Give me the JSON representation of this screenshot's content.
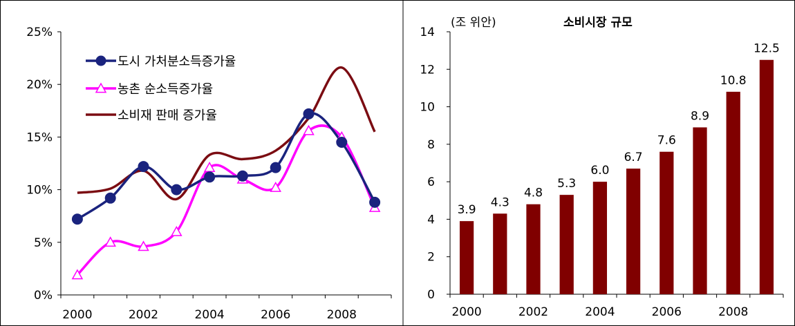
{
  "chart_data": [
    {
      "type": "line",
      "x": [
        2000,
        2001,
        2002,
        2003,
        2004,
        2005,
        2006,
        2007,
        2008,
        2009
      ],
      "xticks": [
        "2000",
        "2002",
        "2004",
        "2006",
        "2008"
      ],
      "yticks": [
        "0%",
        "5%",
        "10%",
        "15%",
        "20%",
        "25%"
      ],
      "ylim": [
        0,
        25
      ],
      "y_unit": "%",
      "legend_position": "top-left",
      "series": [
        {
          "name": "도시 가처분소득증가율",
          "color": "#1a237e",
          "marker": "circle",
          "values": [
            7.2,
            9.2,
            12.2,
            10.0,
            11.2,
            11.3,
            12.1,
            17.2,
            14.5,
            8.8
          ]
        },
        {
          "name": "농촌 순소득증가율",
          "color": "#ff00ff",
          "marker": "triangle",
          "values": [
            1.9,
            5.0,
            4.6,
            6.0,
            12.1,
            11.0,
            10.2,
            15.6,
            15.0,
            8.3
          ]
        },
        {
          "name": "소비재 판매 증가율",
          "color": "#7b0c12",
          "marker": "none",
          "values": [
            9.7,
            10.1,
            11.8,
            9.1,
            13.3,
            12.9,
            13.7,
            16.8,
            21.6,
            15.5
          ]
        }
      ]
    },
    {
      "type": "bar",
      "title": "소비시장 규모",
      "unit_label": "(조 위안)",
      "categories": [
        "2000",
        "2001",
        "2002",
        "2003",
        "2004",
        "2005",
        "2006",
        "2007",
        "2008",
        "2009"
      ],
      "xticks": [
        "2000",
        "2002",
        "2004",
        "2006",
        "2008"
      ],
      "values": [
        3.9,
        4.3,
        4.8,
        5.3,
        6.0,
        6.7,
        7.6,
        8.9,
        10.8,
        12.5
      ],
      "value_labels": [
        "3.9",
        "4.3",
        "4.8",
        "5.3",
        "6.0",
        "6.7",
        "7.6",
        "8.9",
        "10.8",
        "12.5"
      ],
      "ylim": [
        0,
        14
      ],
      "yticks": [
        "0",
        "2",
        "4",
        "6",
        "8",
        "10",
        "12",
        "14"
      ],
      "bar_color": "#800000"
    }
  ]
}
